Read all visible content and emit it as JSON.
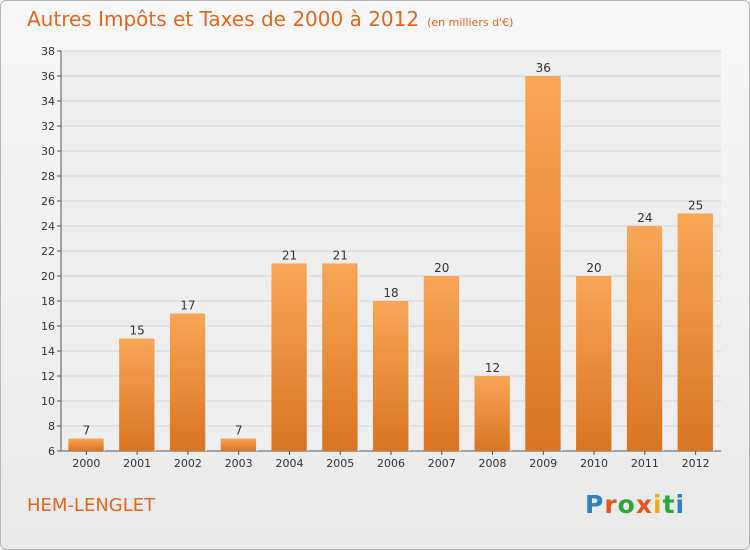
{
  "header": {
    "title": "Autres Impôts et Taxes de 2000 à 2012",
    "unit": "(en milliers d'€)"
  },
  "footer": {
    "commune": "HEM-LENGLET",
    "brand": "Proxiti"
  },
  "colors": {
    "title": "#e2671c",
    "bar_light": "#f8a656",
    "bar_dark": "#d97422",
    "logo_letters": [
      "#2f7fc4",
      "#e4561b",
      "#2aa836",
      "#e4561b",
      "#e2b21c",
      "#2aa836",
      "#2f7fc4"
    ]
  },
  "chart_data": {
    "type": "bar",
    "title": "Autres Impôts et Taxes de 2000 à 2012",
    "subtitle": "(en milliers d'€)",
    "xlabel": "",
    "ylabel": "",
    "categories": [
      "2000",
      "2001",
      "2002",
      "2003",
      "2004",
      "2005",
      "2006",
      "2007",
      "2008",
      "2009",
      "2010",
      "2011",
      "2012"
    ],
    "values": [
      7,
      15,
      17,
      7,
      21,
      21,
      18,
      20,
      12,
      36,
      20,
      24,
      25
    ],
    "data_labels": [
      "7",
      "15",
      "17",
      "7",
      "21",
      "21",
      "18",
      "20",
      "12",
      "36",
      "20",
      "24",
      "25"
    ],
    "ylim": [
      6,
      38
    ],
    "yticks": [
      6,
      8,
      10,
      12,
      14,
      16,
      18,
      20,
      22,
      24,
      26,
      28,
      30,
      32,
      34,
      36,
      38
    ],
    "grid": true,
    "legend": "none"
  }
}
